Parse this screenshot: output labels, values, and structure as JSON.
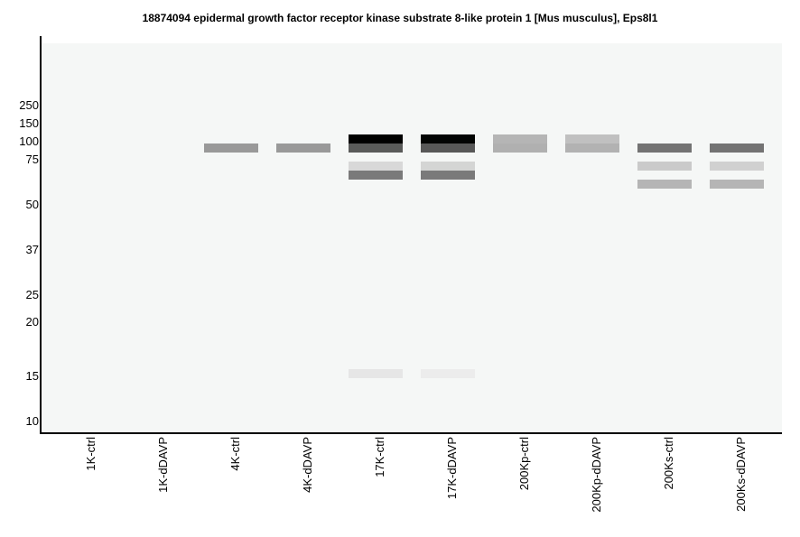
{
  "chart_data": {
    "type": "heatmap",
    "subtype": "virtual western blot",
    "title": "18874094 epidermal growth factor receptor kinase substrate 8-like protein 1 [Mus musculus], Eps8l1",
    "ylabel": "",
    "xlabel": "",
    "markers": [
      250,
      150,
      100,
      75,
      50,
      37,
      25,
      20,
      15,
      10
    ],
    "lanes": [
      "1K-ctrl",
      "1K-dDAVP",
      "4K-ctrl",
      "4K-dDAVP",
      "17K-ctrl",
      "17K-dDAVP",
      "200Kp-ctrl",
      "200Kp-dDAVP",
      "200Ks-ctrl",
      "200Ks-dDAVP"
    ],
    "background": "#f5f7f6",
    "bands": [
      {
        "lane": "4K-ctrl",
        "mw": 90,
        "color": "#999999"
      },
      {
        "lane": "4K-dDAVP",
        "mw": 90,
        "color": "#999999"
      },
      {
        "lane": "17K-ctrl",
        "mw": 105,
        "color": "#000000"
      },
      {
        "lane": "17K-ctrl",
        "mw": 90,
        "color": "#5a5b5a"
      },
      {
        "lane": "17K-ctrl",
        "mw": 71,
        "color": "#d8d8d8"
      },
      {
        "lane": "17K-ctrl",
        "mw": 66,
        "color": "#7a7a7a"
      },
      {
        "lane": "17K-ctrl",
        "mw": 15.2,
        "color": "#e6e6e6"
      },
      {
        "lane": "17K-dDAVP",
        "mw": 105,
        "color": "#020403"
      },
      {
        "lane": "17K-dDAVP",
        "mw": 90,
        "color": "#585858"
      },
      {
        "lane": "17K-dDAVP",
        "mw": 71,
        "color": "#d4d5d4"
      },
      {
        "lane": "17K-dDAVP",
        "mw": 66,
        "color": "#7a7a7a"
      },
      {
        "lane": "17K-dDAVP",
        "mw": 15.2,
        "color": "#ececec"
      },
      {
        "lane": "200Kp-ctrl",
        "mw": 105,
        "color": "#b5b5b5"
      },
      {
        "lane": "200Kp-ctrl",
        "mw": 90,
        "color": "#b0b0b0"
      },
      {
        "lane": "200Kp-dDAVP",
        "mw": 105,
        "color": "#c0c0c0"
      },
      {
        "lane": "200Kp-dDAVP",
        "mw": 90,
        "color": "#b2b2b2"
      },
      {
        "lane": "200Ks-ctrl",
        "mw": 90,
        "color": "#737373"
      },
      {
        "lane": "200Ks-ctrl",
        "mw": 71,
        "color": "#cacaca"
      },
      {
        "lane": "200Ks-ctrl",
        "mw": 61,
        "color": "#b5b5b5"
      },
      {
        "lane": "200Ks-dDAVP",
        "mw": 90,
        "color": "#737373"
      },
      {
        "lane": "200Ks-dDAVP",
        "mw": 71,
        "color": "#d0d0d0"
      },
      {
        "lane": "200Ks-dDAVP",
        "mw": 61,
        "color": "#b5b5b5"
      }
    ]
  }
}
